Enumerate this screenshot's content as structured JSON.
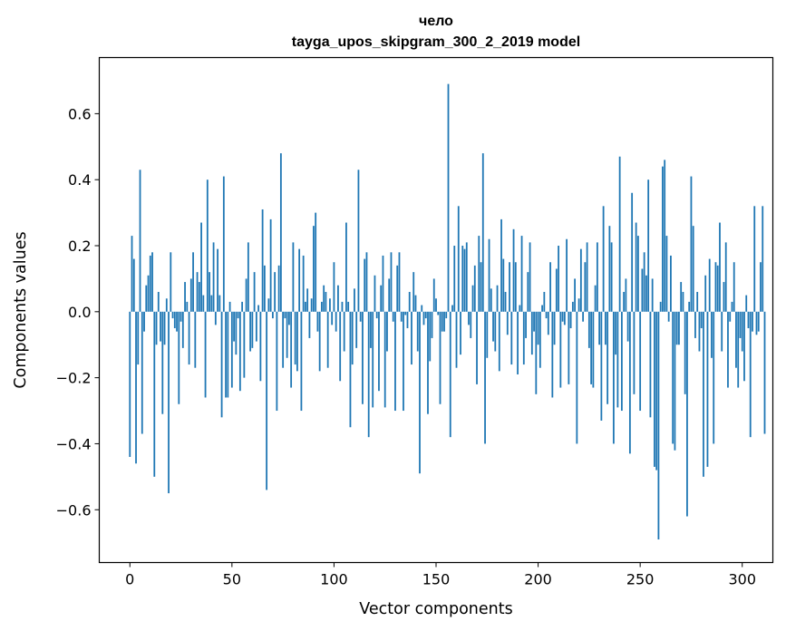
{
  "chart_data": {
    "type": "bar",
    "title_line1": "чело",
    "title_line2": "tayga_upos_skipgram_300_2_2019 model",
    "xlabel": "Vector components",
    "ylabel": "Components values",
    "xlim": [
      -15,
      315
    ],
    "ylim": [
      -0.76,
      0.77
    ],
    "xticks": [
      0,
      50,
      100,
      150,
      200,
      250,
      300
    ],
    "xtick_labels": [
      "0",
      "50",
      "100",
      "150",
      "200",
      "250",
      "300"
    ],
    "yticks": [
      -0.6,
      -0.4,
      -0.2,
      0.0,
      0.2,
      0.4,
      0.6
    ],
    "ytick_labels": [
      "−0.6",
      "−0.4",
      "−0.2",
      "0.0",
      "0.2",
      "0.4",
      "0.6"
    ],
    "bar_color": "#1f77b4",
    "values": [
      -0.44,
      0.23,
      0.16,
      -0.46,
      -0.16,
      0.43,
      -0.37,
      -0.06,
      0.08,
      0.11,
      0.17,
      0.18,
      -0.5,
      -0.1,
      0.06,
      -0.09,
      -0.31,
      -0.1,
      0.04,
      -0.55,
      0.18,
      -0.02,
      -0.05,
      -0.06,
      -0.28,
      -0.03,
      -0.11,
      0.09,
      0.03,
      -0.16,
      0.1,
      0.18,
      -0.17,
      0.12,
      0.09,
      0.27,
      0.05,
      -0.26,
      0.4,
      0.12,
      0.05,
      0.21,
      -0.04,
      0.19,
      0.05,
      -0.32,
      0.41,
      -0.26,
      -0.26,
      0.03,
      -0.23,
      -0.09,
      -0.13,
      -0.02,
      -0.24,
      0.03,
      -0.2,
      0.1,
      0.21,
      -0.12,
      -0.11,
      0.12,
      -0.09,
      0.02,
      -0.21,
      0.31,
      0.14,
      -0.54,
      0.04,
      0.28,
      -0.02,
      0.12,
      -0.3,
      0.14,
      0.48,
      -0.17,
      -0.02,
      -0.14,
      -0.04,
      -0.23,
      0.21,
      -0.16,
      -0.18,
      0.19,
      -0.3,
      0.17,
      0.03,
      0.07,
      -0.08,
      0.04,
      0.26,
      0.3,
      -0.06,
      -0.18,
      0.03,
      0.08,
      0.06,
      -0.17,
      0.04,
      -0.04,
      0.15,
      -0.06,
      0.08,
      -0.21,
      0.03,
      -0.12,
      0.27,
      0.03,
      -0.35,
      -0.16,
      0.07,
      -0.11,
      0.43,
      -0.03,
      -0.28,
      0.16,
      0.18,
      -0.38,
      -0.11,
      -0.29,
      0.11,
      -0.02,
      -0.24,
      0.08,
      0.17,
      -0.29,
      -0.12,
      0.1,
      0.18,
      -0.03,
      -0.3,
      0.14,
      0.18,
      -0.03,
      -0.3,
      -0.01,
      -0.05,
      0.06,
      -0.16,
      0.12,
      0.05,
      -0.12,
      -0.49,
      0.02,
      -0.04,
      -0.02,
      -0.31,
      -0.15,
      -0.08,
      0.1,
      0.04,
      -0.01,
      -0.28,
      -0.06,
      -0.06,
      -0.02,
      0.69,
      -0.38,
      0.02,
      0.2,
      -0.17,
      0.32,
      -0.13,
      0.2,
      0.19,
      0.21,
      -0.04,
      -0.08,
      0.08,
      0.14,
      -0.22,
      0.23,
      0.15,
      0.48,
      -0.4,
      -0.14,
      0.22,
      0.07,
      -0.09,
      -0.12,
      0.08,
      -0.18,
      0.28,
      0.16,
      0.06,
      -0.07,
      0.15,
      -0.16,
      0.25,
      0.15,
      -0.19,
      0.02,
      0.23,
      -0.16,
      -0.08,
      0.12,
      0.21,
      -0.13,
      -0.06,
      -0.25,
      -0.1,
      -0.17,
      0.02,
      0.06,
      -0.02,
      -0.07,
      0.15,
      -0.26,
      -0.1,
      0.13,
      0.2,
      -0.23,
      -0.03,
      -0.04,
      0.22,
      -0.22,
      -0.05,
      0.03,
      0.1,
      -0.4,
      0.04,
      0.19,
      -0.03,
      0.15,
      0.21,
      -0.11,
      -0.22,
      -0.23,
      0.08,
      0.21,
      -0.1,
      -0.33,
      0.32,
      -0.1,
      -0.28,
      0.26,
      0.21,
      -0.4,
      -0.13,
      -0.29,
      0.47,
      -0.3,
      0.06,
      0.1,
      -0.09,
      -0.43,
      0.36,
      -0.25,
      0.27,
      0.23,
      -0.3,
      0.13,
      0.18,
      0.11,
      0.4,
      -0.32,
      0.1,
      -0.47,
      -0.48,
      -0.69,
      0.03,
      0.44,
      0.46,
      0.23,
      -0.03,
      0.17,
      -0.4,
      -0.42,
      -0.1,
      -0.1,
      0.09,
      0.06,
      -0.25,
      -0.62,
      0.03,
      0.41,
      0.26,
      -0.08,
      0.06,
      -0.12,
      -0.05,
      -0.5,
      0.11,
      -0.47,
      0.16,
      -0.14,
      -0.4,
      0.15,
      0.14,
      0.27,
      -0.12,
      0.09,
      0.21,
      -0.23,
      -0.03,
      0.03,
      0.15,
      -0.17,
      -0.23,
      -0.08,
      -0.12,
      -0.21,
      0.05,
      -0.05,
      -0.38,
      -0.06,
      0.32,
      -0.07,
      -0.06,
      0.15,
      0.32,
      -0.37
    ]
  }
}
